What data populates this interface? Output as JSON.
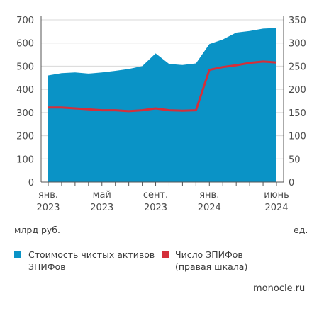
{
  "chart_data": {
    "type": "area",
    "x": [
      "2023-01",
      "2023-02",
      "2023-03",
      "2023-04",
      "2023-05",
      "2023-06",
      "2023-07",
      "2023-08",
      "2023-09",
      "2023-10",
      "2023-11",
      "2023-12",
      "2024-01",
      "2024-02",
      "2024-03",
      "2024-04",
      "2024-05",
      "2024-06"
    ],
    "x_tick_labels": [
      {
        "at": "2023-01",
        "line1": "янв.",
        "line2": "2023"
      },
      {
        "at": "2023-05",
        "line1": "май",
        "line2": "2023"
      },
      {
        "at": "2023-09",
        "line1": "сент.",
        "line2": "2023"
      },
      {
        "at": "2024-01",
        "line1": "янв.",
        "line2": "2024"
      },
      {
        "at": "2024-06",
        "line1": "июнь",
        "line2": "2024"
      }
    ],
    "series": [
      {
        "name": "Стоимость чистых активов ЗПИФов",
        "axis": "left",
        "kind": "area",
        "color": "#0a93c6",
        "values": [
          460,
          470,
          473,
          468,
          473,
          480,
          488,
          500,
          555,
          510,
          505,
          512,
          595,
          615,
          645,
          652,
          662,
          665
        ]
      },
      {
        "name": "Число ЗПИФов (правая шкала)",
        "axis": "right",
        "kind": "line",
        "color": "#d42f3a",
        "values": [
          161,
          161,
          159,
          157,
          155,
          155,
          153,
          155,
          159,
          155,
          154,
          155,
          242,
          248,
          252,
          257,
          260,
          258
        ]
      }
    ],
    "y_left": {
      "min": 0,
      "max": 700,
      "ticks": [
        0,
        100,
        200,
        300,
        400,
        500,
        600,
        700
      ],
      "unit": "млрд руб."
    },
    "y_right": {
      "min": 0,
      "max": 350,
      "ticks": [
        0,
        50,
        100,
        150,
        200,
        250,
        300,
        350
      ],
      "unit": "ед."
    },
    "grid": true,
    "legend_position": "bottom",
    "legend": [
      {
        "line1": "Стоимость чистых активов",
        "line2": "ЗПИФов",
        "color": "#0a93c6"
      },
      {
        "line1": "Число ЗПИФов",
        "line2": "(правая шкала)",
        "color": "#d42f3a"
      }
    ]
  },
  "units": {
    "left": "млрд руб.",
    "right": "ед."
  },
  "source": "monocle.ru"
}
